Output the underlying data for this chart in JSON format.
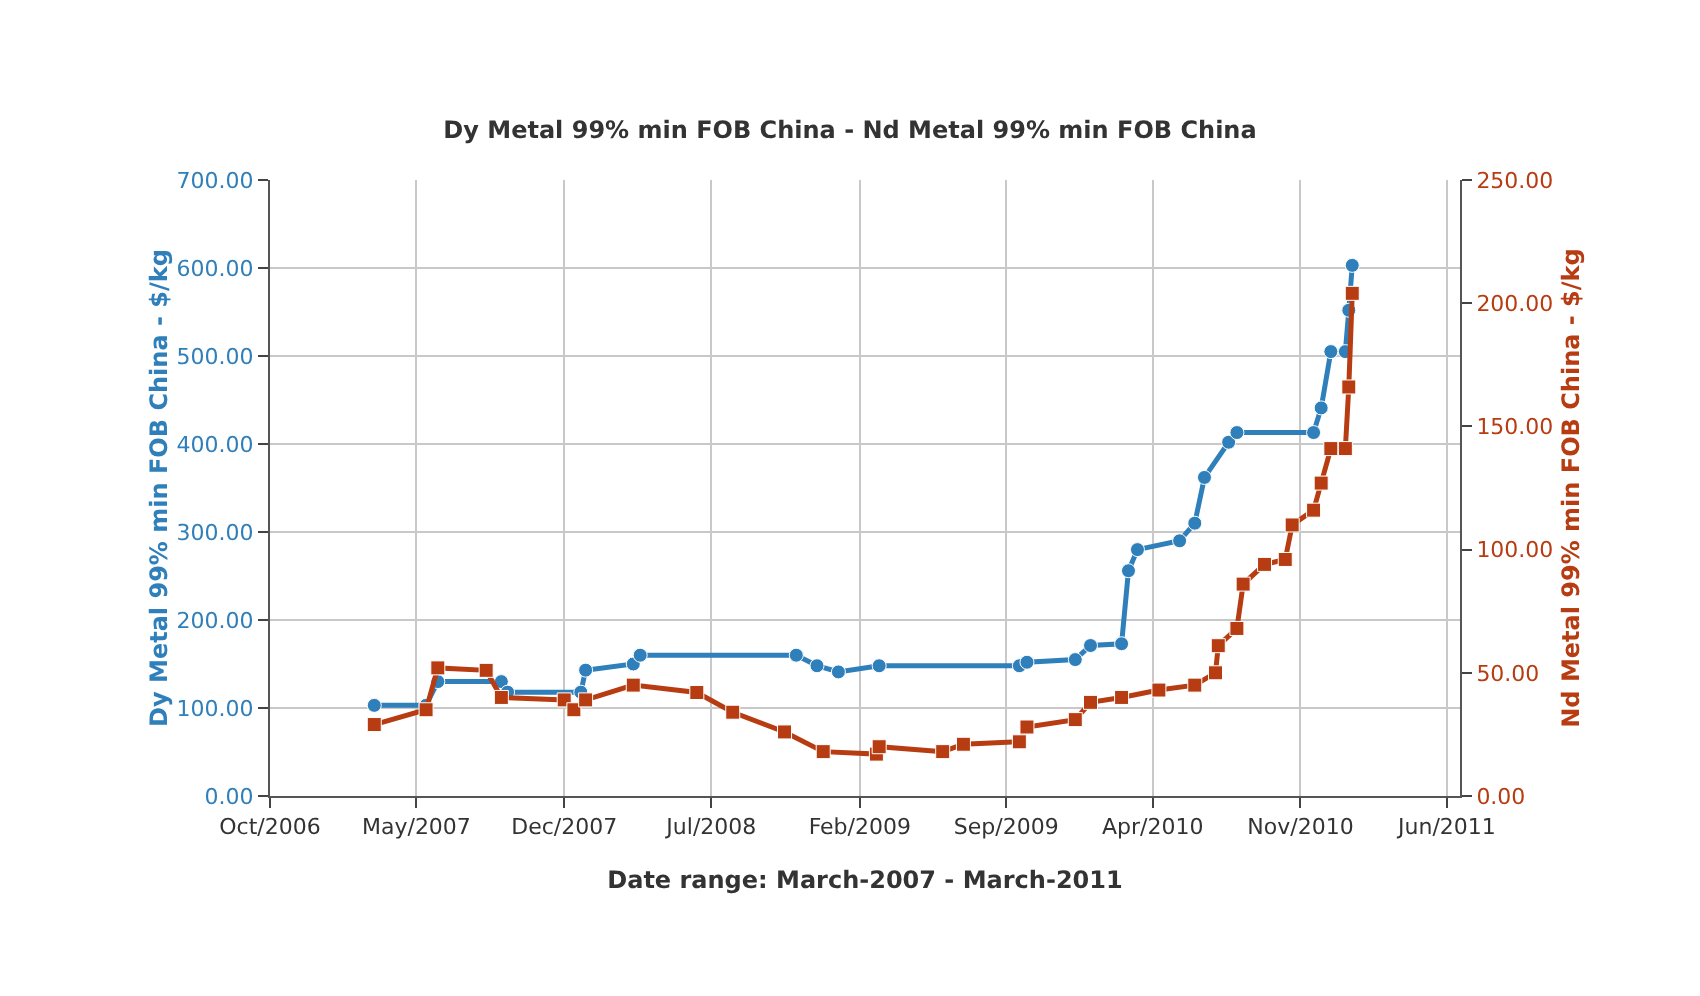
{
  "chart_data": {
    "type": "line",
    "title": "Dy Metal 99% min FOB China - Nd Metal 99% min FOB China",
    "xlabel": "Date range: March-2007 - March-2011",
    "ylabel": "Dy Metal 99% min FOB China - $/kg",
    "y2label": "Nd Metal 99% min FOB China - $/kg",
    "xlim": [
      "2006-10-01",
      "2011-06-20"
    ],
    "xticks": [
      {
        "value": "2006-10-01",
        "label": "Oct/2006"
      },
      {
        "value": "2007-05-01",
        "label": "May/2007"
      },
      {
        "value": "2007-12-01",
        "label": "Dec/2007"
      },
      {
        "value": "2008-07-01",
        "label": "Jul/2008"
      },
      {
        "value": "2009-02-01",
        "label": "Feb/2009"
      },
      {
        "value": "2009-09-01",
        "label": "Sep/2009"
      },
      {
        "value": "2010-04-01",
        "label": "Apr/2010"
      },
      {
        "value": "2010-11-01",
        "label": "Nov/2010"
      },
      {
        "value": "2011-06-01",
        "label": "Jun/2011"
      }
    ],
    "ylim": [
      0,
      700
    ],
    "yticks": [
      {
        "value": 0,
        "label": "0.00"
      },
      {
        "value": 100,
        "label": "100.00"
      },
      {
        "value": 200,
        "label": "200.00"
      },
      {
        "value": 300,
        "label": "300.00"
      },
      {
        "value": 400,
        "label": "400.00"
      },
      {
        "value": 500,
        "label": "500.00"
      },
      {
        "value": 600,
        "label": "600.00"
      },
      {
        "value": 700,
        "label": "700.00"
      }
    ],
    "y2lim": [
      0,
      250
    ],
    "y2ticks": [
      {
        "value": 0,
        "label": "0.00"
      },
      {
        "value": 50,
        "label": "50.00"
      },
      {
        "value": 100,
        "label": "100.00"
      },
      {
        "value": 150,
        "label": "150.00"
      },
      {
        "value": 200,
        "label": "200.00"
      },
      {
        "value": 250,
        "label": "250.00"
      }
    ],
    "grid": true,
    "line_style": "solid",
    "series": [
      {
        "color": "#2f7fba",
        "marker": "circle",
        "x": [
          "2007-03-01",
          "2007-05-15",
          "2007-06-01",
          "2007-09-01",
          "2007-09-10",
          "2007-12-25",
          "2008-01-01",
          "2008-03-10",
          "2008-03-20",
          "2008-11-01",
          "2008-12-01",
          "2009-01-01",
          "2009-03-01",
          "2009-09-20",
          "2009-10-01",
          "2009-12-10",
          "2010-01-01",
          "2010-02-15",
          "2010-02-25",
          "2010-03-10",
          "2010-05-10",
          "2010-06-01",
          "2010-06-15",
          "2010-07-20",
          "2010-08-01",
          "2010-11-20",
          "2010-12-01",
          "2010-12-15",
          "2011-01-05",
          "2011-01-10",
          "2011-01-15"
        ],
        "values": [
          103,
          103,
          130,
          130,
          118,
          118,
          143,
          150,
          160,
          160,
          148,
          141,
          148,
          148,
          152,
          155,
          171,
          173,
          256,
          280,
          290,
          310,
          362,
          402,
          413,
          413,
          441,
          505,
          505,
          552,
          603
        ]
      },
      {
        "color": "#b83c12",
        "marker": "square",
        "axis": "y2",
        "x": [
          "2007-03-01",
          "2007-05-15",
          "2007-06-01",
          "2007-08-10",
          "2007-09-01",
          "2007-12-01",
          "2007-12-15",
          "2008-01-01",
          "2008-03-10",
          "2008-06-10",
          "2008-08-01",
          "2008-10-15",
          "2008-12-10",
          "2009-02-25",
          "2009-03-01",
          "2009-06-01",
          "2009-07-01",
          "2009-09-20",
          "2009-10-01",
          "2009-12-10",
          "2010-01-01",
          "2010-02-15",
          "2010-04-10",
          "2010-06-01",
          "2010-07-01",
          "2010-07-05",
          "2010-08-01",
          "2010-08-10",
          "2010-09-10",
          "2010-10-10",
          "2010-10-20",
          "2010-11-20",
          "2010-12-01",
          "2010-12-15",
          "2011-01-05",
          "2011-01-10",
          "2011-01-15"
        ],
        "values": [
          29,
          35,
          52,
          51,
          40,
          39,
          35,
          39,
          45,
          42,
          34,
          26,
          18,
          17,
          20,
          18,
          21,
          22,
          28,
          31,
          38,
          40,
          43,
          45,
          50,
          61,
          68,
          86,
          94,
          96,
          110,
          116,
          127,
          141,
          141,
          166,
          204
        ]
      }
    ]
  }
}
